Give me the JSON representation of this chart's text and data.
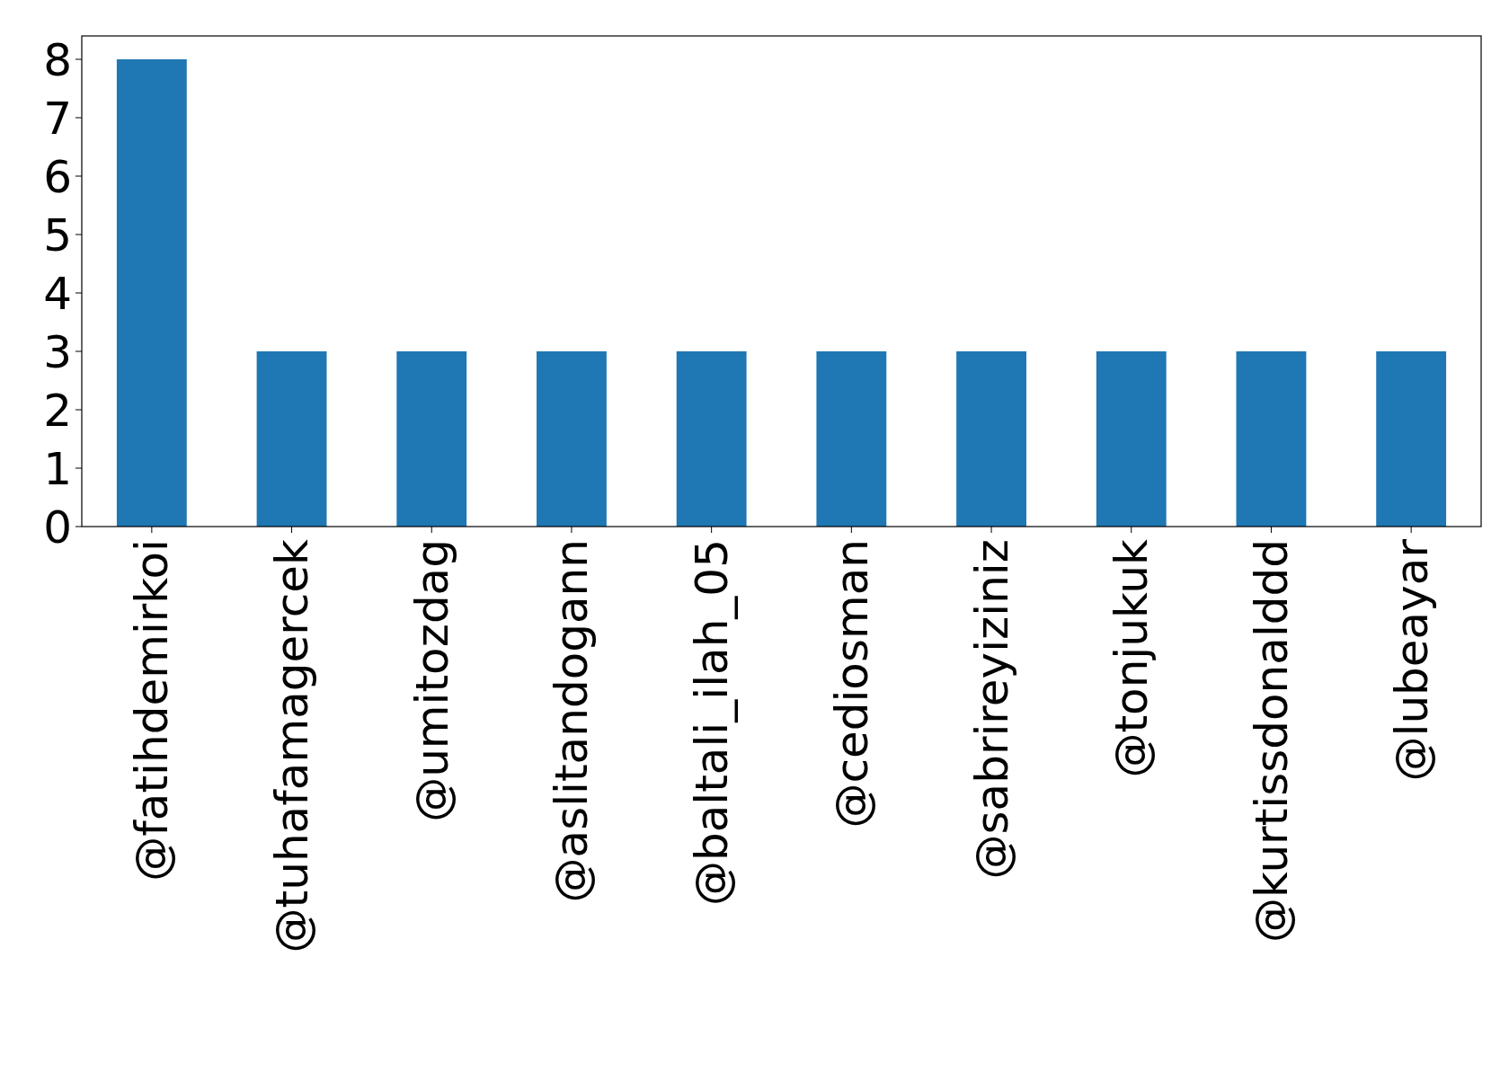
{
  "chart_data": {
    "type": "bar",
    "categories": [
      "@fatihdemirkoi",
      "@tuhafamagercek",
      "@umitozdag",
      "@aslitandogann",
      "@baltali_ilah_05",
      "@cediosman",
      "@sabrireyiziniz",
      "@tonjukuk",
      "@kurtissdonalddd",
      "@lubeayar"
    ],
    "values": [
      8,
      3,
      3,
      3,
      3,
      3,
      3,
      3,
      3,
      3
    ],
    "color": "#1f77b4",
    "ylim": [
      0,
      8.4
    ],
    "yticks": [
      0,
      1,
      2,
      3,
      4,
      5,
      6,
      7,
      8
    ],
    "grid": false
  }
}
